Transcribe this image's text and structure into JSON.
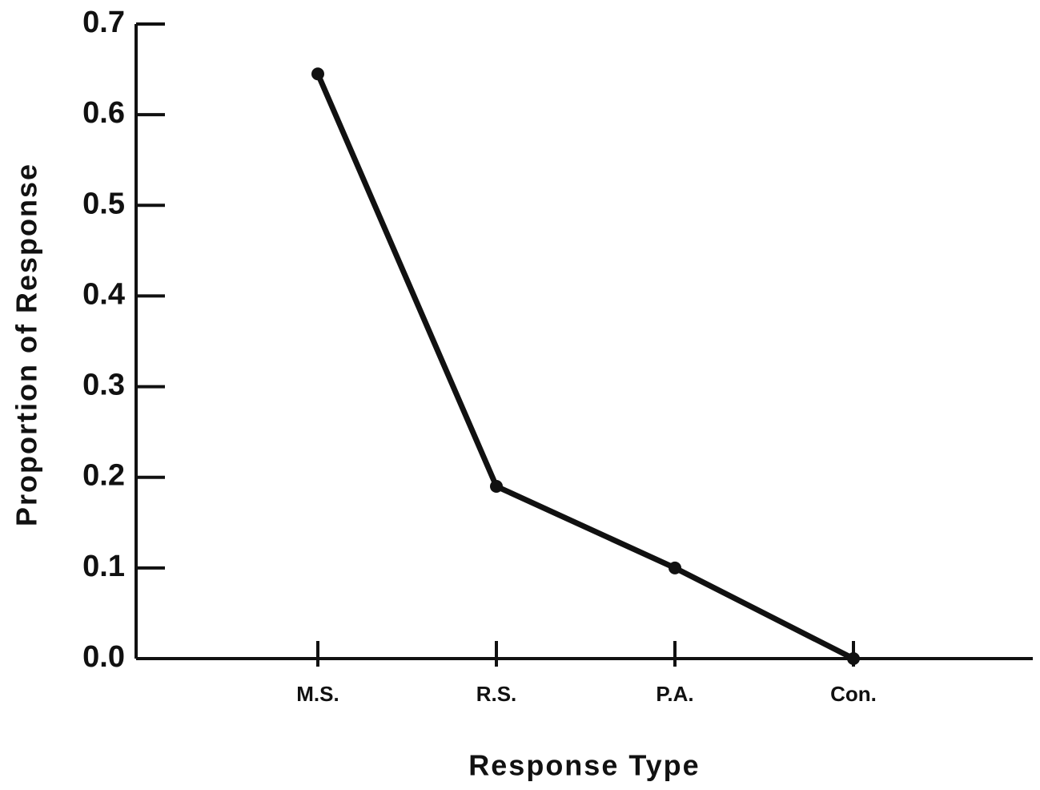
{
  "chart_data": {
    "type": "line",
    "x_label": "Response Type",
    "y_label": "Proportion of Response",
    "categories": [
      "M.S.",
      "R.S.",
      "P.A.",
      "Con."
    ],
    "values": [
      0.645,
      0.19,
      0.1,
      0.0
    ],
    "color": "#111111",
    "ylim": [
      0,
      0.7
    ],
    "yticks": [
      {
        "value": 0,
        "label": "0.0"
      },
      0.1,
      0.2,
      0.3,
      0.4,
      0.5,
      0.6,
      0.7
    ],
    "grid": false
  }
}
